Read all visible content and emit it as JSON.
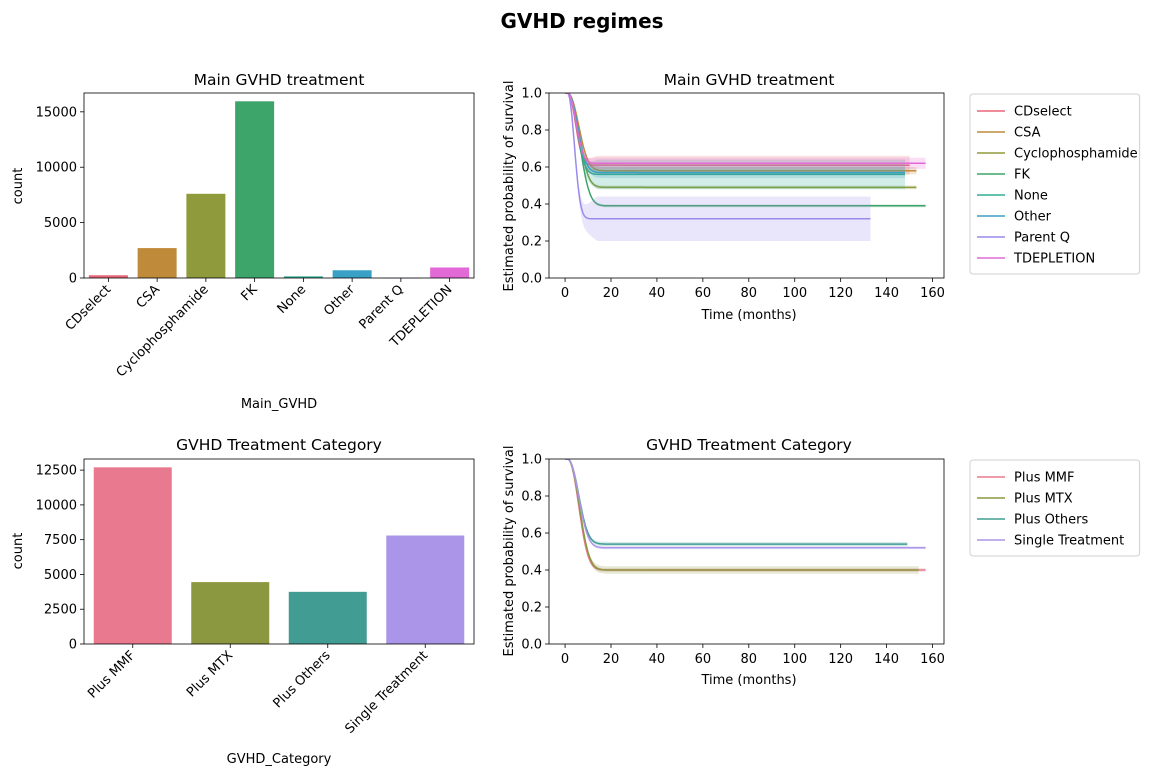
{
  "suptitle": "GVHD regimes",
  "colors": {
    "CDselect": "#e8677a",
    "CSA": "#c08a3b",
    "Cyclophosphamide": "#8f9a3c",
    "FK": "#3da569",
    "None": "#34ab91",
    "Other": "#39a1c5",
    "Parent Q": "#9c8aea",
    "TDEPLETION": "#e26ad7",
    "Plus MMF": "#e8798f",
    "Plus MTX": "#8c983f",
    "Plus Others": "#419d94",
    "Single Treatment": "#aa95e8"
  },
  "chart_data": [
    {
      "type": "bar",
      "title": "Main GVHD treatment",
      "xlabel": "Main_GVHD",
      "ylabel": "count",
      "categories": [
        "CDselect",
        "CSA",
        "Cyclophosphamide",
        "FK",
        "None",
        "Other",
        "Parent Q",
        "TDEPLETION"
      ],
      "values": [
        250,
        2700,
        7600,
        15950,
        150,
        700,
        10,
        950
      ],
      "ylim": [
        0,
        16700
      ],
      "yticks": [
        0,
        5000,
        10000,
        15000
      ],
      "ytick_labels": [
        "0",
        "5000",
        "10000",
        "15000"
      ]
    },
    {
      "type": "line",
      "title": "Main GVHD treatment",
      "xlabel": "Time (months)",
      "ylabel": "Estimated probability of survival",
      "xlim": [
        -7,
        165
      ],
      "ylim": [
        0,
        1.0
      ],
      "xticks": [
        0,
        20,
        40,
        60,
        80,
        100,
        120,
        140,
        160
      ],
      "yticks": [
        0.0,
        0.2,
        0.4,
        0.6,
        0.8,
        1.0
      ],
      "ytick_labels": [
        "0.0",
        "0.2",
        "0.4",
        "0.6",
        "0.8",
        "1.0"
      ],
      "legend": "outside right",
      "series": [
        {
          "name": "CDselect",
          "plateau": 0.61,
          "tmax": 150,
          "ci": 0.05,
          "steep": 1.4
        },
        {
          "name": "CSA",
          "plateau": 0.58,
          "tmax": 153,
          "ci": 0.02,
          "steep": 1.0
        },
        {
          "name": "Cyclophosphamide",
          "plateau": 0.49,
          "tmax": 153,
          "ci": 0.01,
          "steep": 1.0
        },
        {
          "name": "FK",
          "plateau": 0.39,
          "tmax": 157,
          "ci": 0.008,
          "steep": 0.95
        },
        {
          "name": "None",
          "plateau": 0.56,
          "tmax": 148,
          "ci": 0.08,
          "steep": 1.2
        },
        {
          "name": "Other",
          "plateau": 0.57,
          "tmax": 148,
          "ci": 0.03,
          "steep": 1.1
        },
        {
          "name": "Parent Q",
          "plateau": 0.32,
          "tmax": 133,
          "ci": 0.12,
          "steep": 1.6
        },
        {
          "name": "TDEPLETION",
          "plateau": 0.62,
          "tmax": 157,
          "ci": 0.03,
          "steep": 1.3
        }
      ]
    },
    {
      "type": "bar",
      "title": "GVHD Treatment Category",
      "xlabel": "GVHD_Category",
      "ylabel": "count",
      "categories": [
        "Plus MMF",
        "Plus MTX",
        "Plus Others",
        "Single Treatment"
      ],
      "values": [
        12700,
        4450,
        3750,
        7800
      ],
      "ylim": [
        0,
        13300
      ],
      "yticks": [
        0,
        2500,
        5000,
        7500,
        10000,
        12500
      ],
      "ytick_labels": [
        "0",
        "2500",
        "5000",
        "7500",
        "10000",
        "12500"
      ]
    },
    {
      "type": "line",
      "title": "GVHD Treatment Category",
      "xlabel": "Time (months)",
      "ylabel": "Estimated probability of survival",
      "xlim": [
        -7,
        165
      ],
      "ylim": [
        0,
        1.0
      ],
      "xticks": [
        0,
        20,
        40,
        60,
        80,
        100,
        120,
        140,
        160
      ],
      "yticks": [
        0.0,
        0.2,
        0.4,
        0.6,
        0.8,
        1.0
      ],
      "ytick_labels": [
        "0.0",
        "0.2",
        "0.4",
        "0.6",
        "0.8",
        "1.0"
      ],
      "legend": "outside right",
      "series": [
        {
          "name": "Plus MMF",
          "plateau": 0.4,
          "tmax": 157,
          "ci": 0.01,
          "steep": 1.0
        },
        {
          "name": "Plus MTX",
          "plateau": 0.4,
          "tmax": 154,
          "ci": 0.02,
          "steep": 0.95
        },
        {
          "name": "Plus Others",
          "plateau": 0.54,
          "tmax": 149,
          "ci": 0.012,
          "steep": 1.0
        },
        {
          "name": "Single Treatment",
          "plateau": 0.52,
          "tmax": 157,
          "ci": 0.008,
          "steep": 1.0
        }
      ]
    }
  ]
}
